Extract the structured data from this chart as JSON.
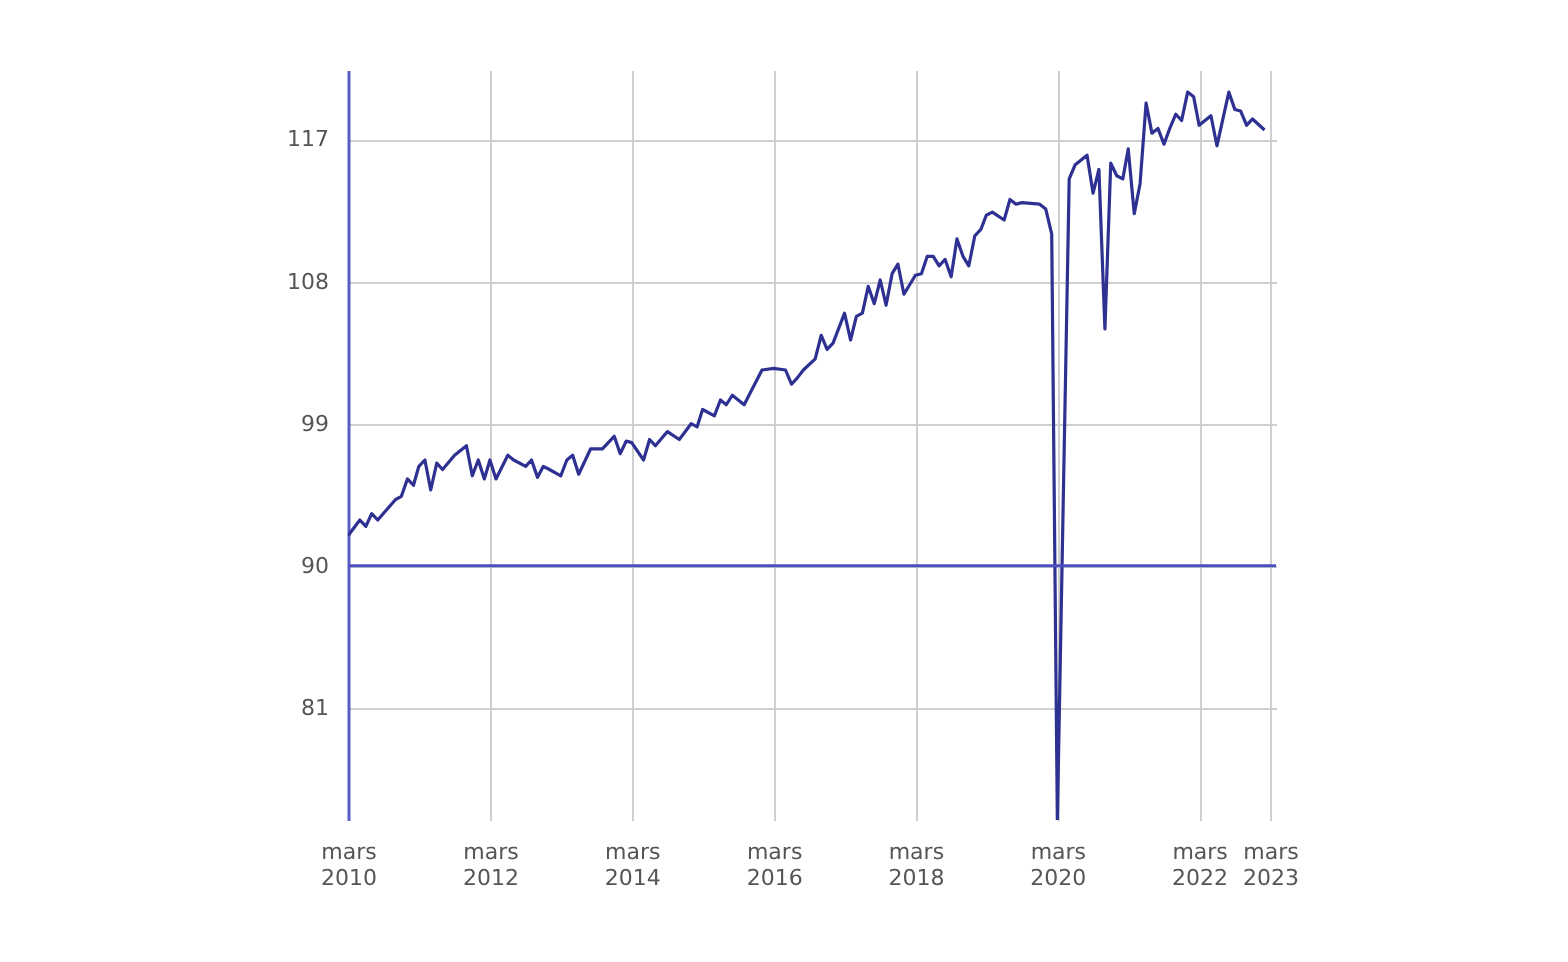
{
  "chart_data": {
    "type": "line",
    "x": [
      "2010-03",
      "2010-05",
      "2010-06",
      "2010-07",
      "2010-08",
      "2010-11",
      "2010-12",
      "2011-01",
      "2011-02",
      "2011-03",
      "2011-04",
      "2011-05",
      "2011-06",
      "2011-07",
      "2011-09",
      "2011-11",
      "2011-12",
      "2012-01",
      "2012-02",
      "2012-03",
      "2012-04",
      "2012-06",
      "2012-07",
      "2012-09",
      "2012-10",
      "2012-11",
      "2012-12",
      "2013-01",
      "2013-03",
      "2013-04",
      "2013-05",
      "2013-06",
      "2013-08",
      "2013-10",
      "2013-12",
      "2014-01",
      "2014-02",
      "2014-03",
      "2014-05",
      "2014-06",
      "2014-07",
      "2014-09",
      "2014-11",
      "2015-01",
      "2015-02",
      "2015-03",
      "2015-05",
      "2015-06",
      "2015-07",
      "2015-08",
      "2015-10",
      "2016-01",
      "2016-03",
      "2016-05",
      "2016-06",
      "2016-07",
      "2016-08",
      "2016-10",
      "2016-11",
      "2016-12",
      "2017-01",
      "2017-03",
      "2017-04",
      "2017-05",
      "2017-06",
      "2017-07",
      "2017-08",
      "2017-09",
      "2017-10",
      "2017-11",
      "2017-12",
      "2018-01",
      "2018-03",
      "2018-04",
      "2018-05",
      "2018-06",
      "2018-07",
      "2018-08",
      "2018-09",
      "2018-10",
      "2018-11",
      "2018-12",
      "2019-01",
      "2019-02",
      "2019-03",
      "2019-04",
      "2019-06",
      "2019-07",
      "2019-08",
      "2019-09",
      "2019-12",
      "2020-01",
      "2020-02",
      "2020-03",
      "2020-05",
      "2020-06",
      "2020-08",
      "2020-09",
      "2020-10",
      "2020-11",
      "2020-12",
      "2021-01",
      "2021-02",
      "2021-03",
      "2021-04",
      "2021-05",
      "2021-06",
      "2021-07",
      "2021-08",
      "2021-09",
      "2021-10",
      "2021-11",
      "2021-12",
      "2022-01",
      "2022-02",
      "2022-03",
      "2022-05",
      "2022-06",
      "2022-08",
      "2022-09",
      "2022-10",
      "2022-11",
      "2022-12",
      "2023-02"
    ],
    "series": [
      {
        "color": "#2e3192",
        "values": [
          91.9,
          92.9,
          92.5,
          93.3,
          92.9,
          94.2,
          94.4,
          95.5,
          95.1,
          96.3,
          96.7,
          94.8,
          96.5,
          96.1,
          97.0,
          97.6,
          95.7,
          96.7,
          95.5,
          96.7,
          95.5,
          97.0,
          96.7,
          96.3,
          96.7,
          95.6,
          96.3,
          96.1,
          95.7,
          96.7,
          97.0,
          95.8,
          97.4,
          97.4,
          98.2,
          97.1,
          97.9,
          97.8,
          96.7,
          98.0,
          97.6,
          98.5,
          98.0,
          99.0,
          98.8,
          99.9,
          99.5,
          100.5,
          100.2,
          100.8,
          100.2,
          102.4,
          102.5,
          102.4,
          101.5,
          101.9,
          102.4,
          103.1,
          104.6,
          103.7,
          104.1,
          106.0,
          104.3,
          105.8,
          106.0,
          107.7,
          106.6,
          108.1,
          106.5,
          108.5,
          109.1,
          107.2,
          108.4,
          108.5,
          109.6,
          109.6,
          109.0,
          109.4,
          108.3,
          110.7,
          109.6,
          109.0,
          110.9,
          111.3,
          112.2,
          112.4,
          111.9,
          113.2,
          112.9,
          113.0,
          112.9,
          112.6,
          111.0,
          73.9,
          114.5,
          115.4,
          116.0,
          113.6,
          115.1,
          105.0,
          115.5,
          114.7,
          114.5,
          116.4,
          112.3,
          114.2,
          119.3,
          117.4,
          117.7,
          116.7,
          117.7,
          118.6,
          118.2,
          120.0,
          119.7,
          117.9,
          118.5,
          116.6,
          120.0,
          118.9,
          118.8,
          117.9,
          118.3,
          117.6
        ]
      }
    ],
    "xlim": [
      "2010-03",
      "2023-04"
    ],
    "ylim": [
      73.9,
      121.4
    ],
    "xticks": [
      {
        "value": "2010-03",
        "label": "mars 2010"
      },
      {
        "value": "2012-03",
        "label": "mars 2012"
      },
      {
        "value": "2014-03",
        "label": "mars 2014"
      },
      {
        "value": "2016-03",
        "label": "mars 2016"
      },
      {
        "value": "2018-03",
        "label": "mars 2018"
      },
      {
        "value": "2020-03",
        "label": "mars 2020"
      },
      {
        "value": "2022-03",
        "label": "mars 2022"
      },
      {
        "value": "2023-03",
        "label": "mars 2023"
      }
    ],
    "yticks": [
      81,
      90,
      99,
      108,
      117
    ],
    "grid": true,
    "ref_lines": [
      {
        "axis": "y",
        "value": 90,
        "color": "#4b51c2"
      }
    ]
  }
}
